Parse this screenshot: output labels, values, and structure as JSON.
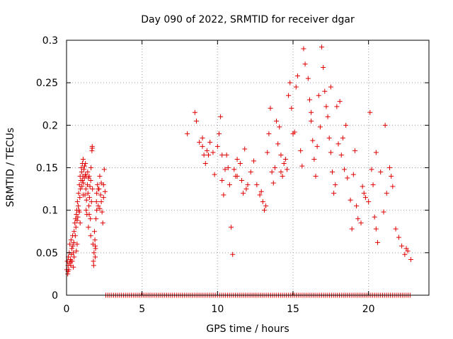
{
  "chart_data": {
    "type": "scatter",
    "title": "Day 090 of 2022, SRMTID for receiver dgar",
    "xlabel": "GPS time / hours",
    "ylabel": "SRMTID / TECUs",
    "xlim": [
      0,
      24
    ],
    "ylim": [
      0,
      0.3
    ],
    "x_ticks": [
      0,
      5,
      10,
      15,
      20
    ],
    "x_tick_labels": [
      "0",
      "5",
      "10",
      "15",
      "20"
    ],
    "y_ticks": [
      0,
      0.05,
      0.1,
      0.15,
      0.2,
      0.25,
      0.3
    ],
    "y_tick_labels": [
      "0",
      "0.05",
      "0.1",
      "0.15",
      "0.2",
      "0.25",
      "0.3"
    ],
    "grid": true,
    "marker": "+",
    "color": "#e00000",
    "series": [
      {
        "name": "SRMTID",
        "points": [
          [
            0.02,
            0.03
          ],
          [
            0.05,
            0.04
          ],
          [
            0.08,
            0.025
          ],
          [
            0.1,
            0.035
          ],
          [
            0.12,
            0.045
          ],
          [
            0.15,
            0.03
          ],
          [
            0.18,
            0.05
          ],
          [
            0.2,
            0.038
          ],
          [
            0.22,
            0.06
          ],
          [
            0.25,
            0.042
          ],
          [
            0.28,
            0.035
          ],
          [
            0.3,
            0.065
          ],
          [
            0.32,
            0.048
          ],
          [
            0.35,
            0.055
          ],
          [
            0.38,
            0.04
          ],
          [
            0.4,
            0.07
          ],
          [
            0.42,
            0.058
          ],
          [
            0.45,
            0.05
          ],
          [
            0.48,
            0.062
          ],
          [
            0.5,
            0.075
          ],
          [
            0.55,
            0.085
          ],
          [
            0.58,
            0.07
          ],
          [
            0.6,
            0.09
          ],
          [
            0.62,
            0.08
          ],
          [
            0.65,
            0.095
          ],
          [
            0.68,
            0.1
          ],
          [
            0.7,
            0.088
          ],
          [
            0.72,
            0.11
          ],
          [
            0.75,
            0.092
          ],
          [
            0.78,
            0.105
          ],
          [
            0.8,
            0.12
          ],
          [
            0.82,
            0.1
          ],
          [
            0.85,
            0.13
          ],
          [
            0.88,
            0.115
          ],
          [
            0.9,
            0.14
          ],
          [
            0.92,
            0.125
          ],
          [
            0.95,
            0.135
          ],
          [
            0.98,
            0.15
          ],
          [
            1.0,
            0.145
          ],
          [
            1.02,
            0.128
          ],
          [
            1.05,
            0.155
          ],
          [
            1.08,
            0.14
          ],
          [
            1.1,
            0.16
          ],
          [
            1.12,
            0.132
          ],
          [
            1.15,
            0.148
          ],
          [
            1.18,
            0.138
          ],
          [
            1.2,
            0.152
          ],
          [
            1.22,
            0.118
          ],
          [
            1.25,
            0.142
          ],
          [
            1.28,
            0.125
          ],
          [
            1.3,
            0.1
          ],
          [
            1.32,
            0.112
          ],
          [
            1.35,
            0.095
          ],
          [
            1.38,
            0.13
          ],
          [
            1.4,
            0.145
          ],
          [
            1.42,
            0.12
          ],
          [
            1.45,
            0.08
          ],
          [
            1.48,
            0.105
          ],
          [
            1.5,
            0.14
          ],
          [
            1.52,
            0.115
          ],
          [
            1.55,
            0.128
          ],
          [
            1.58,
            0.09
          ],
          [
            1.6,
            0.135
          ],
          [
            1.62,
            0.15
          ],
          [
            1.65,
            0.11
          ],
          [
            1.68,
            0.17
          ],
          [
            1.7,
            0.175
          ],
          [
            1.72,
            0.125
          ],
          [
            1.75,
            0.06
          ],
          [
            1.78,
            0.04
          ],
          [
            1.8,
            0.035
          ],
          [
            1.82,
            0.05
          ],
          [
            1.85,
            0.075
          ],
          [
            1.88,
            0.065
          ],
          [
            1.9,
            0.045
          ],
          [
            1.92,
            0.055
          ],
          [
            1.95,
            0.09
          ],
          [
            1.98,
            0.11
          ],
          [
            2.0,
            0.12
          ],
          [
            2.05,
            0.13
          ],
          [
            2.1,
            0.105
          ],
          [
            2.15,
            0.125
          ],
          [
            2.2,
            0.14
          ],
          [
            2.25,
            0.118
          ],
          [
            2.3,
            0.132
          ],
          [
            2.35,
            0.098
          ],
          [
            2.4,
            0.085
          ],
          [
            2.45,
            0.115
          ],
          [
            2.5,
            0.148
          ],
          [
            2.55,
            0.122
          ],
          [
            0.1,
            0.028
          ],
          [
            0.3,
            0.04
          ],
          [
            0.5,
            0.045
          ],
          [
            0.7,
            0.06
          ],
          [
            0.9,
            0.085
          ],
          [
            1.1,
            0.118
          ],
          [
            1.3,
            0.14
          ],
          [
            1.5,
            0.095
          ],
          [
            1.7,
            0.173
          ],
          [
            1.9,
            0.058
          ],
          [
            2.1,
            0.125
          ],
          [
            2.3,
            0.11
          ],
          [
            2.45,
            0.13
          ],
          [
            0.45,
            0.033
          ],
          [
            0.65,
            0.052
          ],
          [
            0.85,
            0.098
          ],
          [
            1.05,
            0.135
          ],
          [
            1.25,
            0.155
          ],
          [
            1.45,
            0.138
          ],
          [
            2.0,
            0.1
          ],
          [
            2.2,
            0.102
          ],
          [
            1.6,
            0.07
          ],
          [
            8.0,
            0.19
          ],
          [
            8.5,
            0.215
          ],
          [
            8.6,
            0.205
          ],
          [
            8.8,
            0.18
          ],
          [
            9.0,
            0.175
          ],
          [
            9.1,
            0.165
          ],
          [
            9.2,
            0.155
          ],
          [
            9.3,
            0.17
          ],
          [
            9.5,
            0.18
          ],
          [
            9.7,
            0.168
          ],
          [
            9.8,
            0.142
          ],
          [
            10.0,
            0.175
          ],
          [
            10.1,
            0.19
          ],
          [
            10.2,
            0.21
          ],
          [
            10.3,
            0.135
          ],
          [
            10.4,
            0.118
          ],
          [
            10.5,
            0.148
          ],
          [
            10.6,
            0.165
          ],
          [
            10.7,
            0.15
          ],
          [
            10.8,
            0.13
          ],
          [
            10.9,
            0.08
          ],
          [
            11.0,
            0.048
          ],
          [
            11.1,
            0.148
          ],
          [
            11.2,
            0.14
          ],
          [
            11.3,
            0.16
          ],
          [
            11.5,
            0.155
          ],
          [
            11.6,
            0.135
          ],
          [
            11.7,
            0.12
          ],
          [
            11.9,
            0.125
          ],
          [
            12.0,
            0.13
          ],
          [
            12.2,
            0.145
          ],
          [
            12.4,
            0.158
          ],
          [
            12.6,
            0.13
          ],
          [
            12.8,
            0.118
          ],
          [
            13.0,
            0.11
          ],
          [
            13.1,
            0.1
          ],
          [
            13.2,
            0.105
          ],
          [
            13.3,
            0.168
          ],
          [
            13.4,
            0.19
          ],
          [
            13.6,
            0.145
          ],
          [
            13.7,
            0.132
          ],
          [
            13.8,
            0.15
          ],
          [
            14.0,
            0.178
          ],
          [
            14.1,
            0.198
          ],
          [
            14.2,
            0.165
          ],
          [
            14.3,
            0.14
          ],
          [
            14.4,
            0.155
          ],
          [
            14.5,
            0.16
          ],
          [
            14.6,
            0.148
          ],
          [
            14.7,
            0.235
          ],
          [
            14.8,
            0.25
          ],
          [
            14.9,
            0.22
          ],
          [
            15.0,
            0.19
          ],
          [
            15.2,
            0.245
          ],
          [
            15.3,
            0.258
          ],
          [
            15.5,
            0.17
          ],
          [
            15.6,
            0.152
          ],
          [
            15.7,
            0.29
          ],
          [
            15.8,
            0.272
          ],
          [
            16.0,
            0.255
          ],
          [
            16.1,
            0.23
          ],
          [
            16.2,
            0.205
          ],
          [
            16.3,
            0.182
          ],
          [
            16.4,
            0.16
          ],
          [
            16.5,
            0.14
          ],
          [
            16.6,
            0.175
          ],
          [
            16.8,
            0.198
          ],
          [
            16.9,
            0.292
          ],
          [
            17.0,
            0.268
          ],
          [
            17.1,
            0.24
          ],
          [
            17.2,
            0.222
          ],
          [
            17.3,
            0.21
          ],
          [
            17.4,
            0.185
          ],
          [
            17.5,
            0.168
          ],
          [
            17.6,
            0.145
          ],
          [
            17.7,
            0.12
          ],
          [
            17.8,
            0.13
          ],
          [
            17.9,
            0.222
          ],
          [
            18.0,
            0.178
          ],
          [
            18.2,
            0.165
          ],
          [
            18.4,
            0.148
          ],
          [
            18.5,
            0.2
          ],
          [
            18.6,
            0.138
          ],
          [
            18.8,
            0.112
          ],
          [
            18.9,
            0.078
          ],
          [
            19.0,
            0.142
          ],
          [
            19.2,
            0.105
          ],
          [
            19.3,
            0.09
          ],
          [
            19.5,
            0.085
          ],
          [
            19.6,
            0.128
          ],
          [
            19.8,
            0.115
          ],
          [
            20.0,
            0.11
          ],
          [
            20.1,
            0.215
          ],
          [
            20.2,
            0.148
          ],
          [
            20.3,
            0.13
          ],
          [
            20.4,
            0.092
          ],
          [
            20.5,
            0.078
          ],
          [
            20.6,
            0.062
          ],
          [
            20.8,
            0.145
          ],
          [
            21.0,
            0.098
          ],
          [
            21.2,
            0.12
          ],
          [
            21.4,
            0.15
          ],
          [
            21.5,
            0.14
          ],
          [
            21.6,
            0.128
          ],
          [
            21.8,
            0.078
          ],
          [
            22.0,
            0.068
          ],
          [
            22.2,
            0.058
          ],
          [
            22.4,
            0.048
          ],
          [
            22.6,
            0.052
          ],
          [
            22.8,
            0.042
          ],
          [
            9.0,
            0.185
          ],
          [
            10.3,
            0.165
          ],
          [
            11.8,
            0.172
          ],
          [
            12.9,
            0.122
          ],
          [
            13.9,
            0.205
          ],
          [
            15.1,
            0.192
          ],
          [
            16.7,
            0.235
          ],
          [
            17.5,
            0.245
          ],
          [
            18.3,
            0.185
          ],
          [
            19.7,
            0.12
          ],
          [
            20.5,
            0.168
          ],
          [
            21.1,
            0.2
          ],
          [
            22.5,
            0.055
          ],
          [
            18.1,
            0.228
          ],
          [
            19.1,
            0.17
          ],
          [
            16.2,
            0.215
          ],
          [
            14.2,
            0.145
          ],
          [
            11.3,
            0.14
          ],
          [
            9.4,
            0.165
          ],
          [
            13.5,
            0.22
          ]
        ]
      }
    ],
    "zero_band": {
      "x_start": 2.6,
      "x_end": 22.8,
      "step": 0.13,
      "y": 0
    }
  }
}
